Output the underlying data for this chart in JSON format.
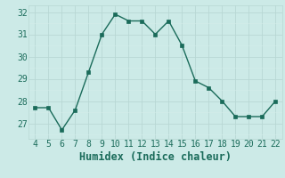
{
  "x": [
    4,
    5,
    6,
    7,
    8,
    9,
    10,
    11,
    12,
    13,
    14,
    15,
    16,
    17,
    18,
    19,
    20,
    21,
    22
  ],
  "y": [
    27.7,
    27.7,
    26.7,
    27.6,
    29.3,
    31.0,
    31.9,
    31.6,
    31.6,
    31.0,
    31.6,
    30.5,
    28.9,
    28.6,
    28.0,
    27.3,
    27.3,
    27.3,
    28.0
  ],
  "line_color": "#1a6b5a",
  "marker_color": "#1a6b5a",
  "bg_color": "#cceae7",
  "grid_major_color": "#b8d8d4",
  "grid_minor_color": "#d4ecea",
  "xlabel": "Humidex (Indice chaleur)",
  "xlim": [
    3.5,
    22.5
  ],
  "ylim": [
    26.3,
    32.3
  ],
  "xticks": [
    4,
    5,
    6,
    7,
    8,
    9,
    10,
    11,
    12,
    13,
    14,
    15,
    16,
    17,
    18,
    19,
    20,
    21,
    22
  ],
  "yticks": [
    27,
    28,
    29,
    30,
    31,
    32
  ],
  "tick_color": "#1a6b5a",
  "label_color": "#1a6b5a",
  "font_size": 7.0,
  "xlabel_fontsize": 8.5,
  "linewidth": 1.0,
  "markersize": 2.5
}
